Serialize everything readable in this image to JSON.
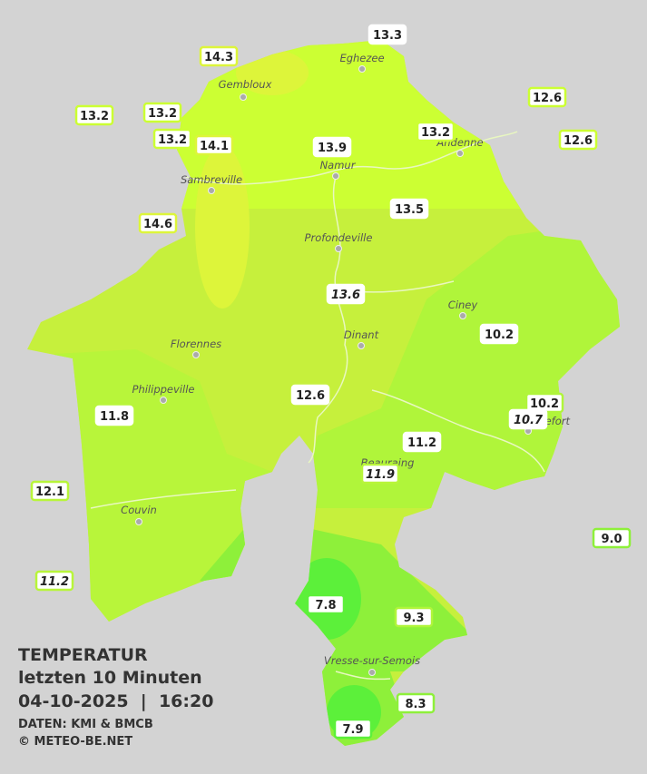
{
  "title": "TEMPERATUR",
  "subtitle": "letzten 10 Minuten",
  "date": "04-10-2025",
  "time": "16:20",
  "source": "DATEN: KMI & BMCB",
  "copyright": "© METEO-BE.NET",
  "cities": [
    "Eghezee",
    "Gembloux",
    "Andenne",
    "Namur",
    "Sambreville",
    "Profondeville",
    "Ciney",
    "Dinant",
    "Florennes",
    "Philippeville",
    "Rochefort",
    "Beauraing",
    "Couvin",
    "Vresse-sur-Semois"
  ],
  "stations": [
    "13.3",
    "14.3",
    "12.6",
    "13.2",
    "13.2",
    "13.2",
    "14.1",
    "13.9",
    "13.2",
    "12.6",
    "14.6",
    "13.5",
    "13.6",
    "10.2",
    "12.6",
    "11.8",
    "10.2",
    "10.7",
    "11.2",
    "11.9",
    "12.1",
    "9.0",
    "11.2",
    "7.8",
    "9.3",
    "8.3",
    "7.9"
  ]
}
